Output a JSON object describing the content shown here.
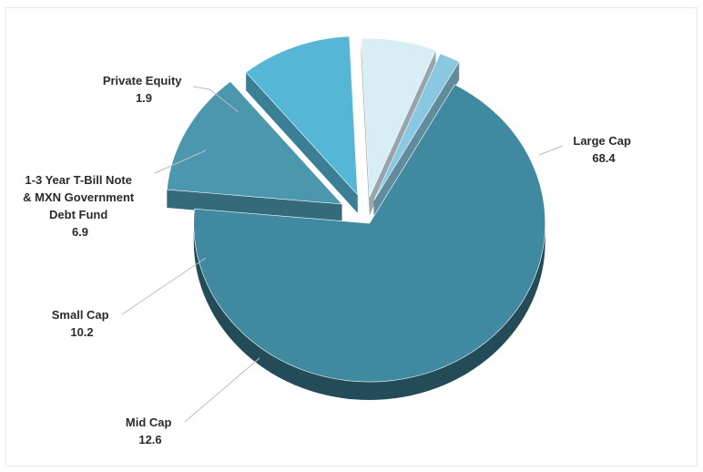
{
  "chart_data": {
    "type": "pie",
    "style": "3d-exploded",
    "slices": [
      {
        "label": "Large Cap",
        "value": 68.4,
        "color": "#3f8aa0"
      },
      {
        "label": "Mid Cap",
        "value": 12.6,
        "color": "#4b97ae"
      },
      {
        "label": "Small Cap",
        "value": 10.2,
        "color": "#55b6d6"
      },
      {
        "label": "1-3 Year T-Bill Note & MXN Government Debt Fund",
        "value": 6.9,
        "color": "#d9edf5"
      },
      {
        "label": "Private Equity",
        "value": 1.9,
        "color": "#89c8e0"
      }
    ],
    "label_lines": {
      "large_cap": [
        "Large Cap",
        "68.4"
      ],
      "mid_cap": [
        "Mid Cap",
        "12.6"
      ],
      "small_cap": [
        "Small Cap",
        "10.2"
      ],
      "tbill": [
        "1-3 Year T-Bill Note",
        "& MXN Government",
        "Debt Fund",
        "6.9"
      ],
      "private_equity": [
        "Private Equity",
        "1.9"
      ]
    },
    "legend": "none"
  }
}
